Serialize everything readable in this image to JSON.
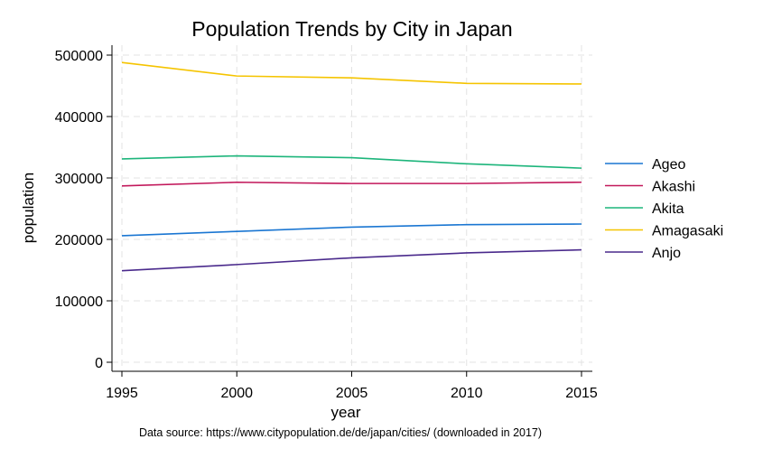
{
  "chart_data": {
    "type": "line",
    "title": "Population Trends by City in Japan",
    "xlabel": "year",
    "ylabel": "population",
    "x": [
      1995,
      2000,
      2005,
      2010,
      2015
    ],
    "x_ticks": [
      "1995",
      "2000",
      "2005",
      "2010",
      "2015"
    ],
    "y_ticks": [
      "0",
      "100000",
      "200000",
      "300000",
      "400000",
      "500000"
    ],
    "y_tick_values": [
      0,
      100000,
      200000,
      300000,
      400000,
      500000
    ],
    "xlim": [
      1995,
      2015
    ],
    "ylim": [
      0,
      500000
    ],
    "grid": true,
    "legend_position": "right",
    "series": [
      {
        "name": "Ageo",
        "color": "#1a76d2",
        "values": [
          206000,
          213000,
          220000,
          224000,
          225000
        ]
      },
      {
        "name": "Akashi",
        "color": "#c2185b",
        "values": [
          287000,
          293000,
          291000,
          291000,
          293000
        ]
      },
      {
        "name": "Akita",
        "color": "#1db57b",
        "values": [
          331000,
          336000,
          333000,
          323000,
          316000
        ]
      },
      {
        "name": "Amagasaki",
        "color": "#f5c400",
        "values": [
          488000,
          466000,
          463000,
          454000,
          453000
        ]
      },
      {
        "name": "Anjo",
        "color": "#4a2a8c",
        "values": [
          149000,
          159000,
          170000,
          178000,
          183000
        ]
      }
    ],
    "note": "Data source: https://www.citypopulation.de/de/japan/cities/ (downloaded in 2017)"
  }
}
